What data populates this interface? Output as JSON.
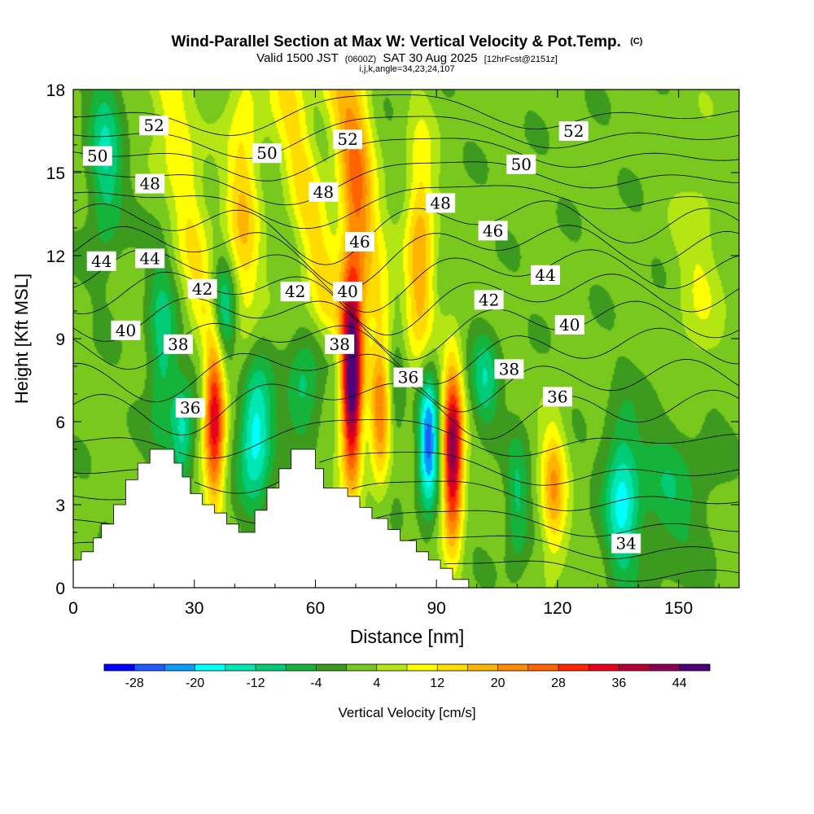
{
  "chart_data": {
    "type": "contour-section",
    "title": "Wind-Parallel Section at Max W: Vertical Velocity & Pot.Temp.",
    "title_mark": "(C)",
    "subtitle_line": {
      "prefix": "Valid 1500 JST",
      "utc": "(0600Z)",
      "date": "SAT 30 Aug 2025",
      "fcst": "[12hrFcst@2151z]"
    },
    "params_line": "i,j,k,angle=34,23,24,107",
    "xlabel": "Distance [nm]",
    "ylabel": "Height [Kft MSL]",
    "xlim": [
      0,
      165
    ],
    "ylim": [
      0,
      18
    ],
    "x_ticks": [
      {
        "value": 0,
        "label": "0"
      },
      {
        "value": 30,
        "label": "30"
      },
      {
        "value": 60,
        "label": "60"
      },
      {
        "value": 90,
        "label": "90"
      },
      {
        "value": 120,
        "label": "120"
      },
      {
        "value": 150,
        "label": "150"
      }
    ],
    "y_ticks": [
      {
        "value": 0,
        "label": "0"
      },
      {
        "value": 3,
        "label": "3"
      },
      {
        "value": 6,
        "label": "6"
      },
      {
        "value": 9,
        "label": "9"
      },
      {
        "value": 12,
        "label": "12"
      },
      {
        "value": 15,
        "label": "15"
      },
      {
        "value": 18,
        "label": "18"
      }
    ],
    "colorbar": {
      "label": "Vertical Velocity [cm/s]",
      "tick_labels": [
        "-28",
        "-20",
        "-12",
        "-4",
        "4",
        "12",
        "20",
        "28",
        "36",
        "44"
      ],
      "levels": [
        -32,
        -28,
        -24,
        -20,
        -16,
        -12,
        -8,
        -4,
        0,
        4,
        8,
        12,
        16,
        20,
        24,
        28,
        32,
        36,
        40,
        44,
        48
      ],
      "colors": [
        "#0000ff",
        "#1e5aff",
        "#0a9bff",
        "#00ffff",
        "#00e6b4",
        "#00cc78",
        "#14b43c",
        "#3c9b1e",
        "#78c81e",
        "#b4e614",
        "#ffff00",
        "#ffdc00",
        "#ffb400",
        "#ff8c00",
        "#ff6400",
        "#ff2800",
        "#e6001e",
        "#b40032",
        "#8c0050",
        "#500078"
      ]
    },
    "terrain_kft": [
      [
        0,
        1.0
      ],
      [
        2,
        1.0
      ],
      [
        2,
        1.3
      ],
      [
        5,
        1.3
      ],
      [
        5,
        1.8
      ],
      [
        7,
        1.8
      ],
      [
        7,
        2.3
      ],
      [
        10,
        2.3
      ],
      [
        10,
        3.0
      ],
      [
        13,
        3.0
      ],
      [
        13,
        3.9
      ],
      [
        16,
        3.9
      ],
      [
        16,
        4.5
      ],
      [
        19,
        4.5
      ],
      [
        19,
        5.0
      ],
      [
        25,
        5.0
      ],
      [
        25,
        4.5
      ],
      [
        27,
        4.5
      ],
      [
        27,
        4.0
      ],
      [
        29,
        4.0
      ],
      [
        29,
        3.4
      ],
      [
        32,
        3.4
      ],
      [
        32,
        3.0
      ],
      [
        35,
        3.0
      ],
      [
        35,
        2.7
      ],
      [
        38,
        2.7
      ],
      [
        38,
        2.3
      ],
      [
        41,
        2.3
      ],
      [
        41,
        2.0
      ],
      [
        45,
        2.0
      ],
      [
        45,
        2.8
      ],
      [
        48,
        2.8
      ],
      [
        48,
        3.6
      ],
      [
        51,
        3.6
      ],
      [
        51,
        4.3
      ],
      [
        54,
        4.3
      ],
      [
        54,
        5.0
      ],
      [
        60,
        5.0
      ],
      [
        60,
        4.3
      ],
      [
        62,
        4.3
      ],
      [
        62,
        3.6
      ],
      [
        68,
        3.6
      ],
      [
        68,
        3.3
      ],
      [
        71,
        3.3
      ],
      [
        71,
        2.9
      ],
      [
        74,
        2.9
      ],
      [
        74,
        2.5
      ],
      [
        78,
        2.5
      ],
      [
        78,
        2.1
      ],
      [
        81,
        2.1
      ],
      [
        81,
        1.7
      ],
      [
        85,
        1.7
      ],
      [
        85,
        1.3
      ],
      [
        88,
        1.3
      ],
      [
        88,
        1.0
      ],
      [
        91,
        1.0
      ],
      [
        91,
        0.7
      ],
      [
        94,
        0.7
      ],
      [
        94,
        0.3
      ],
      [
        98,
        0.3
      ],
      [
        98,
        0.0
      ],
      [
        165,
        0.0
      ]
    ],
    "velocity_features": [
      {
        "x": 8,
        "y": 15.5,
        "sx": 3,
        "sy": 2.5,
        "amp": -13
      },
      {
        "x": 22,
        "y": 8.5,
        "sx": 2.5,
        "sy": 2.5,
        "amp": -12
      },
      {
        "x": 27,
        "y": 5.5,
        "sx": 2,
        "sy": 1.3,
        "amp": -15
      },
      {
        "x": 35,
        "y": 6.2,
        "sx": 1.8,
        "sy": 2.2,
        "amp": 35
      },
      {
        "x": 37,
        "y": 9.8,
        "sx": 2.5,
        "sy": 1.3,
        "amp": -22
      },
      {
        "x": 45,
        "y": 5.6,
        "sx": 3,
        "sy": 1.8,
        "amp": -22
      },
      {
        "x": 42,
        "y": 13.5,
        "sx": 3,
        "sy": 4,
        "amp": 14
      },
      {
        "x": 57,
        "y": 7.2,
        "sx": 3,
        "sy": 1.2,
        "amp": -12
      },
      {
        "x": 69,
        "y": 7.5,
        "sx": 1.8,
        "sy": 2.5,
        "amp": 48
      },
      {
        "x": 70,
        "y": 14.5,
        "sx": 3,
        "sy": 4,
        "amp": 14
      },
      {
        "x": 76,
        "y": 6.3,
        "sx": 1.8,
        "sy": 1.8,
        "amp": 22
      },
      {
        "x": 88,
        "y": 5.3,
        "sx": 1.8,
        "sy": 1.8,
        "amp": -28
      },
      {
        "x": 80,
        "y": 7.5,
        "sx": 1.5,
        "sy": 2,
        "amp": -6
      },
      {
        "x": 86,
        "y": 12,
        "sx": 2.5,
        "sy": 3,
        "amp": 18
      },
      {
        "x": 94,
        "y": 4.8,
        "sx": 1.8,
        "sy": 2.2,
        "amp": 42
      },
      {
        "x": 102,
        "y": 7.5,
        "sx": 2.5,
        "sy": 1.3,
        "amp": -12
      },
      {
        "x": 110,
        "y": 3.0,
        "sx": 2,
        "sy": 1.8,
        "amp": -10
      },
      {
        "x": 119,
        "y": 3.5,
        "sx": 2.2,
        "sy": 1.8,
        "amp": 18
      },
      {
        "x": 136,
        "y": 3.2,
        "sx": 3,
        "sy": 2,
        "amp": -18
      },
      {
        "x": 148,
        "y": 3.5,
        "sx": 6,
        "sy": 2,
        "amp": -8
      },
      {
        "x": 158,
        "y": 5,
        "sx": 3,
        "sy": 2,
        "amp": -2
      },
      {
        "x": 155,
        "y": 11,
        "sx": 4,
        "sy": 3,
        "amp": 6
      }
    ],
    "theta_lines": [
      {
        "base_kft": 0.5,
        "label": "34"
      },
      {
        "base_kft": 2.2,
        "label": "36"
      },
      {
        "base_kft": 4.2,
        "label": "38"
      },
      {
        "base_kft": 6.5,
        "label": "40"
      },
      {
        "base_kft": 8.7,
        "label": "42"
      },
      {
        "base_kft": 10.6,
        "label": "44"
      },
      {
        "base_kft": 12.3,
        "label": "46"
      },
      {
        "base_kft": 14.0,
        "label": "48"
      },
      {
        "base_kft": 15.6,
        "label": "50"
      },
      {
        "base_kft": 17.1,
        "label": "52"
      }
    ],
    "contour_labels": [
      {
        "text": "52",
        "x": 20,
        "y": 16.7
      },
      {
        "text": "52",
        "x": 68,
        "y": 16.2
      },
      {
        "text": "52",
        "x": 124,
        "y": 16.5
      },
      {
        "text": "50",
        "x": 6,
        "y": 15.6
      },
      {
        "text": "50",
        "x": 48,
        "y": 15.7
      },
      {
        "text": "50",
        "x": 111,
        "y": 15.3
      },
      {
        "text": "48",
        "x": 19,
        "y": 14.6
      },
      {
        "text": "48",
        "x": 62,
        "y": 14.3
      },
      {
        "text": "48",
        "x": 91,
        "y": 13.9
      },
      {
        "text": "46",
        "x": 71,
        "y": 12.5
      },
      {
        "text": "46",
        "x": 104,
        "y": 12.9
      },
      {
        "text": "44",
        "x": 7,
        "y": 11.8
      },
      {
        "text": "44",
        "x": 19,
        "y": 11.9
      },
      {
        "text": "44",
        "x": 117,
        "y": 11.3
      },
      {
        "text": "42",
        "x": 32,
        "y": 10.8
      },
      {
        "text": "42",
        "x": 55,
        "y": 10.7
      },
      {
        "text": "42",
        "x": 103,
        "y": 10.4
      },
      {
        "text": "40",
        "x": 13,
        "y": 9.3
      },
      {
        "text": "40",
        "x": 68,
        "y": 10.7
      },
      {
        "text": "40",
        "x": 123,
        "y": 9.5
      },
      {
        "text": "38",
        "x": 26,
        "y": 8.8
      },
      {
        "text": "38",
        "x": 66,
        "y": 8.8
      },
      {
        "text": "38",
        "x": 108,
        "y": 7.9
      },
      {
        "text": "36",
        "x": 29,
        "y": 6.5
      },
      {
        "text": "36",
        "x": 83,
        "y": 7.6
      },
      {
        "text": "36",
        "x": 120,
        "y": 6.9
      },
      {
        "text": "34",
        "x": 137,
        "y": 1.6
      }
    ]
  },
  "style_colors": {
    "background": "#ffffff",
    "terrain": "#ffffff",
    "contour": "#000000"
  }
}
